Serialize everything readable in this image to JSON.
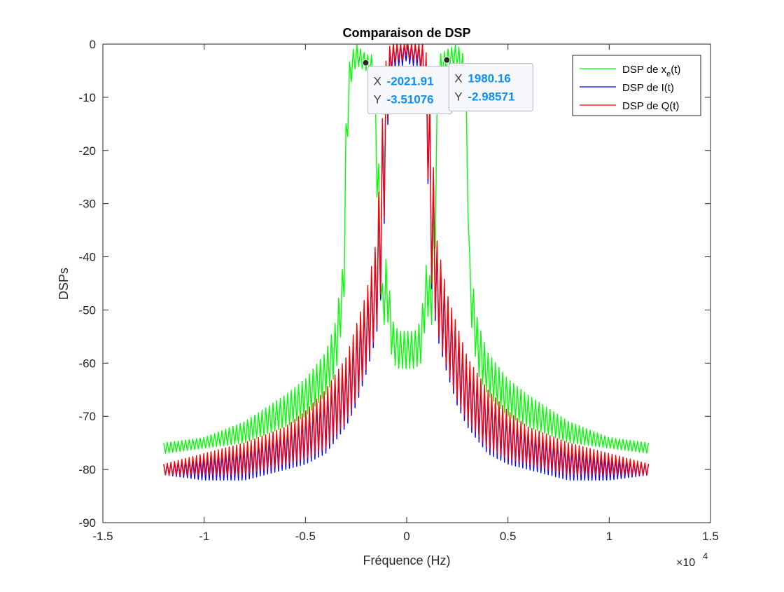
{
  "chart_data": {
    "type": "line",
    "title": "Comparaison de DSP",
    "xlabel": "Fréquence (Hz)",
    "ylabel": "DSPs",
    "x_exponent_label": "×10",
    "x_exponent_power": "4",
    "xlim": [
      -15000,
      15000
    ],
    "ylim": [
      -90,
      0
    ],
    "x_ticks": [
      -15000,
      -10000,
      -5000,
      0,
      5000,
      10000,
      15000
    ],
    "x_tick_labels": [
      "-1.5",
      "-1",
      "-0.5",
      "0",
      "0.5",
      "1",
      "1.5"
    ],
    "y_ticks": [
      0,
      -10,
      -20,
      -30,
      -40,
      -50,
      -60,
      -70,
      -80,
      -90
    ],
    "y_tick_labels": [
      "0",
      "-10",
      "-20",
      "-30",
      "-40",
      "-50",
      "-60",
      "-70",
      "-80",
      "-90"
    ],
    "grid": false,
    "legend_position": "top-right",
    "series": [
      {
        "name": "DSP de x",
        "name_subscript": "e",
        "name_suffix": "(t)",
        "color": "#00ff00",
        "x": [
          -12000,
          -10000,
          -8000,
          -6000,
          -5000,
          -4000,
          -3500,
          -3100,
          -3000,
          -2800,
          -2500,
          -2000,
          -1600,
          -1400,
          -1200,
          -1000,
          -700,
          -400,
          0,
          400,
          700,
          1000,
          1200,
          1400,
          1600,
          2000,
          2500,
          2800,
          3000,
          3100,
          3500,
          4000,
          5000,
          6000,
          8000,
          10000,
          12000
        ],
        "y": [
          -76,
          -75,
          -73,
          -70,
          -67,
          -62,
          -57,
          -45,
          -20,
          -5,
          -2,
          -3.5,
          -5,
          -30,
          -50,
          -45,
          -56,
          -58,
          -58,
          -58,
          -56,
          -45,
          -50,
          -30,
          -5,
          -3,
          -2,
          -5,
          -20,
          -45,
          -57,
          -62,
          -67,
          -70,
          -73,
          -75,
          -76
        ],
        "y_band": [
          [
            -77,
            -75
          ],
          [
            -76,
            -74
          ],
          [
            -75,
            -71
          ],
          [
            -72,
            -66
          ],
          [
            -70,
            -63
          ],
          [
            -66,
            -58
          ],
          [
            -62,
            -52
          ],
          [
            -50,
            -40
          ],
          [
            -25,
            -15
          ],
          [
            -8,
            -2
          ],
          [
            -4,
            0
          ],
          [
            -5,
            -2
          ],
          [
            -8,
            -2
          ],
          [
            -40,
            -20
          ],
          [
            -55,
            -45
          ],
          [
            -50,
            -40
          ],
          [
            -60,
            -52
          ],
          [
            -61,
            -54
          ],
          [
            -61,
            -54
          ],
          [
            -61,
            -54
          ],
          [
            -60,
            -52
          ],
          [
            -50,
            -40
          ],
          [
            -55,
            -45
          ],
          [
            -40,
            -20
          ],
          [
            -8,
            -2
          ],
          [
            -5,
            -1
          ],
          [
            -4,
            0
          ],
          [
            -8,
            -2
          ],
          [
            -25,
            -15
          ],
          [
            -50,
            -40
          ],
          [
            -62,
            -52
          ],
          [
            -66,
            -58
          ],
          [
            -70,
            -63
          ],
          [
            -72,
            -66
          ],
          [
            -75,
            -71
          ],
          [
            -76,
            -74
          ],
          [
            -77,
            -75
          ]
        ]
      },
      {
        "name": "DSP de I(t)",
        "color": "#0000ff",
        "x": [
          -12000,
          -10000,
          -8000,
          -6000,
          -5000,
          -4000,
          -3000,
          -2500,
          -2000,
          -1500,
          -1200,
          -1000,
          -800,
          -500,
          -200,
          0,
          200,
          500,
          800,
          1000,
          1200,
          1500,
          2000,
          2500,
          3000,
          4000,
          5000,
          6000,
          8000,
          10000,
          12000
        ],
        "y": [
          -80,
          -80,
          -79,
          -77,
          -75,
          -72,
          -66,
          -61,
          -55,
          -45,
          -30,
          -10,
          -3,
          -1,
          -2,
          -1,
          -2,
          -1,
          -3,
          -10,
          -30,
          -45,
          -55,
          -61,
          -66,
          -72,
          -75,
          -77,
          -79,
          -80,
          -80
        ],
        "y_band": [
          [
            -81,
            -79
          ],
          [
            -82,
            -78
          ],
          [
            -82,
            -76
          ],
          [
            -80,
            -73
          ],
          [
            -79,
            -70
          ],
          [
            -77,
            -66
          ],
          [
            -72,
            -60
          ],
          [
            -68,
            -54
          ],
          [
            -62,
            -48
          ],
          [
            -55,
            -38
          ],
          [
            -45,
            -15
          ],
          [
            -20,
            -3
          ],
          [
            -6,
            0
          ],
          [
            -4,
            0
          ],
          [
            -4,
            0
          ],
          [
            -3,
            0
          ],
          [
            -4,
            0
          ],
          [
            -4,
            0
          ],
          [
            -6,
            0
          ],
          [
            -20,
            -3
          ],
          [
            -45,
            -15
          ],
          [
            -55,
            -38
          ],
          [
            -62,
            -48
          ],
          [
            -68,
            -54
          ],
          [
            -72,
            -60
          ],
          [
            -77,
            -66
          ],
          [
            -79,
            -70
          ],
          [
            -80,
            -73
          ],
          [
            -82,
            -76
          ],
          [
            -82,
            -78
          ],
          [
            -81,
            -79
          ]
        ]
      },
      {
        "name": "DSP de Q(t)",
        "color": "#ff0000",
        "x": [
          -12000,
          -10000,
          -8000,
          -6000,
          -5000,
          -4000,
          -3000,
          -2500,
          -2000,
          -1500,
          -1200,
          -1000,
          -800,
          -500,
          -200,
          0,
          200,
          500,
          800,
          1000,
          1200,
          1500,
          2000,
          2500,
          3000,
          4000,
          5000,
          6000,
          8000,
          10000,
          12000
        ],
        "y": [
          -80,
          -80,
          -79,
          -77,
          -75,
          -72,
          -66,
          -61,
          -55,
          -45,
          -30,
          -10,
          -3,
          -1,
          -2,
          -1,
          -2,
          -1,
          -3,
          -10,
          -30,
          -45,
          -55,
          -61,
          -66,
          -72,
          -75,
          -77,
          -79,
          -80,
          -80
        ],
        "y_band": [
          [
            -81,
            -79
          ],
          [
            -81,
            -77
          ],
          [
            -81,
            -75
          ],
          [
            -79,
            -72
          ],
          [
            -78,
            -69
          ],
          [
            -76,
            -65
          ],
          [
            -71,
            -59
          ],
          [
            -67,
            -53
          ],
          [
            -61,
            -47
          ],
          [
            -54,
            -37
          ],
          [
            -44,
            -14
          ],
          [
            -19,
            -2
          ],
          [
            -5,
            0
          ],
          [
            -3,
            0
          ],
          [
            -3,
            0
          ],
          [
            -2,
            0
          ],
          [
            -3,
            0
          ],
          [
            -3,
            0
          ],
          [
            -5,
            0
          ],
          [
            -19,
            -2
          ],
          [
            -44,
            -14
          ],
          [
            -54,
            -37
          ],
          [
            -61,
            -47
          ],
          [
            -67,
            -53
          ],
          [
            -71,
            -59
          ],
          [
            -76,
            -65
          ],
          [
            -78,
            -69
          ],
          [
            -79,
            -72
          ],
          [
            -81,
            -75
          ],
          [
            -81,
            -77
          ],
          [
            -81,
            -79
          ]
        ]
      }
    ],
    "datatips": [
      {
        "x_label": "X",
        "x_value": "-2021.91",
        "y_label": "Y",
        "y_value": "-3.51076",
        "x": -2021.91,
        "y": -3.51076
      },
      {
        "x_label": "X",
        "x_value": "1980.16",
        "y_label": "Y",
        "y_value": "-2.98571",
        "x": 1980.16,
        "y": -2.98571
      }
    ]
  }
}
